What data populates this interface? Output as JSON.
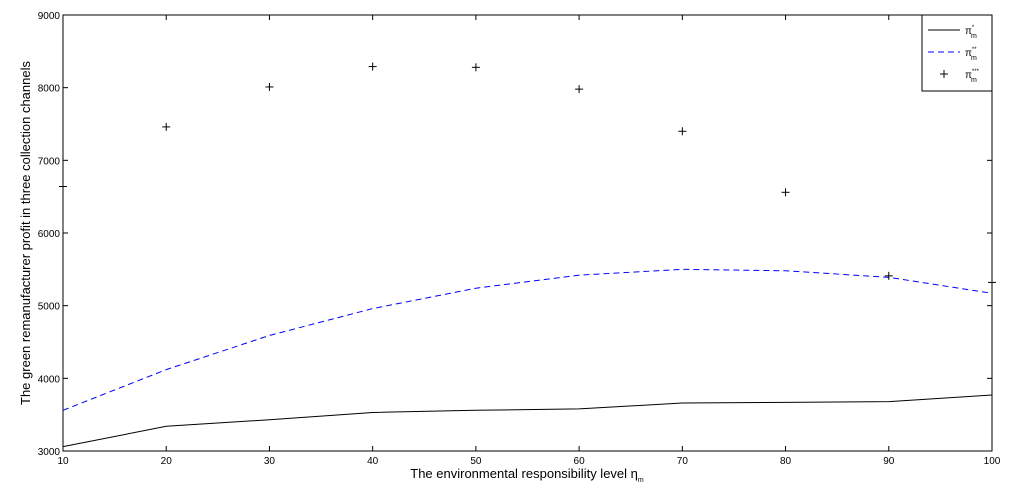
{
  "chart_data": {
    "type": "line",
    "xlabel": "The environmental responsibility level η",
    "xlabel_sub": "m",
    "ylabel": "The green remanufacturer profit in three collection channels",
    "xlim": [
      10,
      100
    ],
    "ylim": [
      3000,
      9000
    ],
    "xticks": [
      10,
      20,
      30,
      40,
      50,
      60,
      70,
      80,
      90,
      100
    ],
    "yticks": [
      3000,
      4000,
      5000,
      6000,
      7000,
      8000,
      9000
    ],
    "grid": false,
    "legend_position": "top-right",
    "series": [
      {
        "name": "π",
        "name_sup": "*",
        "name_sub": "m",
        "style": "solid",
        "color": "#000000",
        "x": [
          10,
          20,
          30,
          40,
          50,
          60,
          70,
          80,
          90,
          100
        ],
        "y": [
          3060,
          3340,
          3430,
          3530,
          3560,
          3580,
          3660,
          3670,
          3680,
          3770
        ]
      },
      {
        "name": "π",
        "name_sup": "**",
        "name_sub": "m",
        "style": "dashed",
        "color": "#0000ff",
        "x": [
          10,
          20,
          30,
          40,
          50,
          60,
          70,
          80,
          90,
          100
        ],
        "y": [
          3560,
          4120,
          4590,
          4960,
          5240,
          5420,
          5500,
          5480,
          5390,
          5170
        ]
      },
      {
        "name": "π",
        "name_sup": "***",
        "name_sub": "m",
        "style": "markers",
        "marker": "+",
        "color": "#000000",
        "x": [
          10,
          20,
          30,
          40,
          50,
          60,
          70,
          80,
          90,
          100
        ],
        "y": [
          6640,
          7460,
          8010,
          8290,
          8280,
          7980,
          7400,
          6560,
          5410,
          5320
        ]
      }
    ]
  }
}
